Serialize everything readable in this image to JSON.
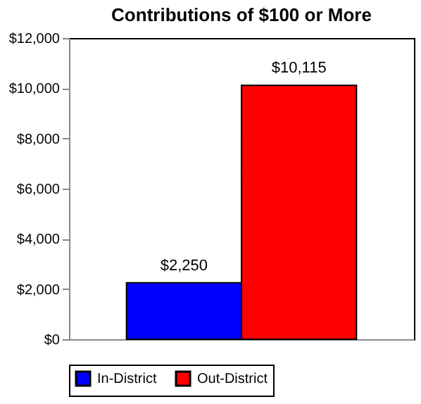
{
  "chart_data": {
    "type": "bar",
    "title": "Contributions of $100 or More",
    "categories": [
      null
    ],
    "series": [
      {
        "name": "In-District",
        "color": "#0000ff",
        "values": [
          2250
        ],
        "value_labels": [
          "$2,250"
        ]
      },
      {
        "name": "Out-District",
        "color": "#ff0000",
        "values": [
          10115
        ],
        "value_labels": [
          "$10,115"
        ]
      }
    ],
    "ylim": [
      0,
      12000
    ],
    "yticks": [
      {
        "value": 0,
        "label": "$0"
      },
      {
        "value": 2000,
        "label": "$2,000"
      },
      {
        "value": 4000,
        "label": "$4,000"
      },
      {
        "value": 6000,
        "label": "$6,000"
      },
      {
        "value": 8000,
        "label": "$8,000"
      },
      {
        "value": 10000,
        "label": "$10,000"
      },
      {
        "value": 12000,
        "label": "$12,000"
      }
    ],
    "grid": false,
    "legend": "bottom"
  }
}
